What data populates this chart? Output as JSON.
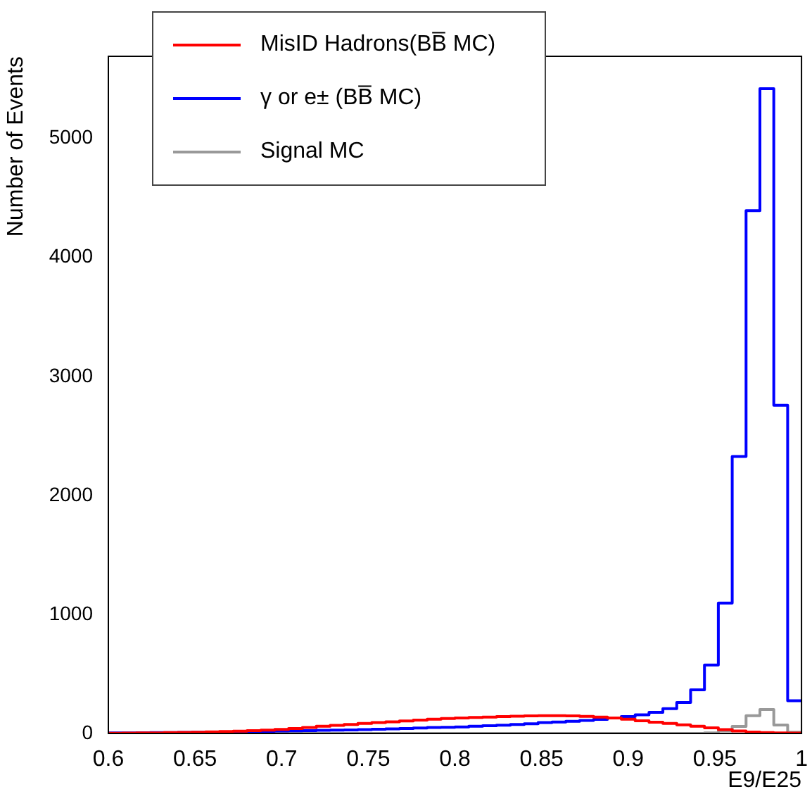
{
  "chart_data": {
    "type": "histogram",
    "xlabel": "E9/E25",
    "ylabel": "Number of Events",
    "bins": [
      0.6,
      0.608,
      0.616,
      0.624,
      0.632,
      0.64,
      0.648,
      0.656,
      0.664,
      0.672,
      0.68,
      0.688,
      0.696,
      0.704,
      0.712,
      0.72,
      0.728,
      0.736,
      0.744,
      0.752,
      0.76,
      0.768,
      0.776,
      0.784,
      0.792,
      0.8,
      0.808,
      0.816,
      0.824,
      0.832,
      0.84,
      0.848,
      0.856,
      0.864,
      0.872,
      0.88,
      0.888,
      0.896,
      0.904,
      0.912,
      0.92,
      0.928,
      0.936,
      0.944,
      0.952,
      0.96,
      0.968,
      0.976,
      0.984,
      0.992,
      1.0
    ],
    "series": [
      {
        "name": "MisID Hadrons(BB̅ MC)",
        "color": "#ff0000",
        "values": [
          2,
          3,
          4,
          5,
          7,
          9,
          11,
          13,
          16,
          19,
          23,
          28,
          34,
          42,
          50,
          60,
          68,
          76,
          84,
          91,
          98,
          105,
          112,
          120,
          126,
          130,
          134,
          138,
          142,
          145,
          148,
          150,
          150,
          148,
          144,
          138,
          130,
          120,
          106,
          95,
          84,
          72,
          60,
          48,
          32,
          20,
          12,
          8,
          5,
          3
        ]
      },
      {
        "name": "γ or e± (BB̅ MC)",
        "color": "#0000ff",
        "values": [
          5,
          5,
          6,
          7,
          8,
          9,
          10,
          11,
          12,
          14,
          16,
          18,
          20,
          22,
          24,
          26,
          28,
          30,
          32,
          35,
          38,
          42,
          46,
          50,
          52,
          55,
          60,
          65,
          70,
          76,
          82,
          91,
          96,
          102,
          110,
          118,
          130,
          142,
          157,
          177,
          209,
          260,
          366,
          575,
          1095,
          2328,
          4393,
          5418,
          2758,
          275
        ]
      },
      {
        "name": "Signal MC",
        "color": "#999999",
        "values": [
          0,
          0,
          0,
          0,
          0,
          0,
          0,
          0,
          0,
          0,
          0,
          0,
          0,
          0,
          0,
          0,
          0,
          0,
          0,
          0,
          0,
          0,
          0,
          0,
          0,
          0,
          0,
          0,
          0,
          0,
          0,
          0,
          0,
          0,
          0,
          0,
          0,
          0,
          0,
          0,
          0,
          0,
          0,
          5,
          20,
          59,
          150,
          201,
          71,
          10
        ]
      }
    ],
    "xlim": [
      0.6,
      1.0
    ],
    "xticks": [
      0.6,
      0.65,
      0.7,
      0.75,
      0.8,
      0.85,
      0.9,
      0.95,
      1
    ],
    "ylim": [
      0,
      5690
    ],
    "yticks": [
      0,
      1000,
      2000,
      3000,
      4000,
      5000
    ],
    "legend": "top left",
    "grid": false
  }
}
